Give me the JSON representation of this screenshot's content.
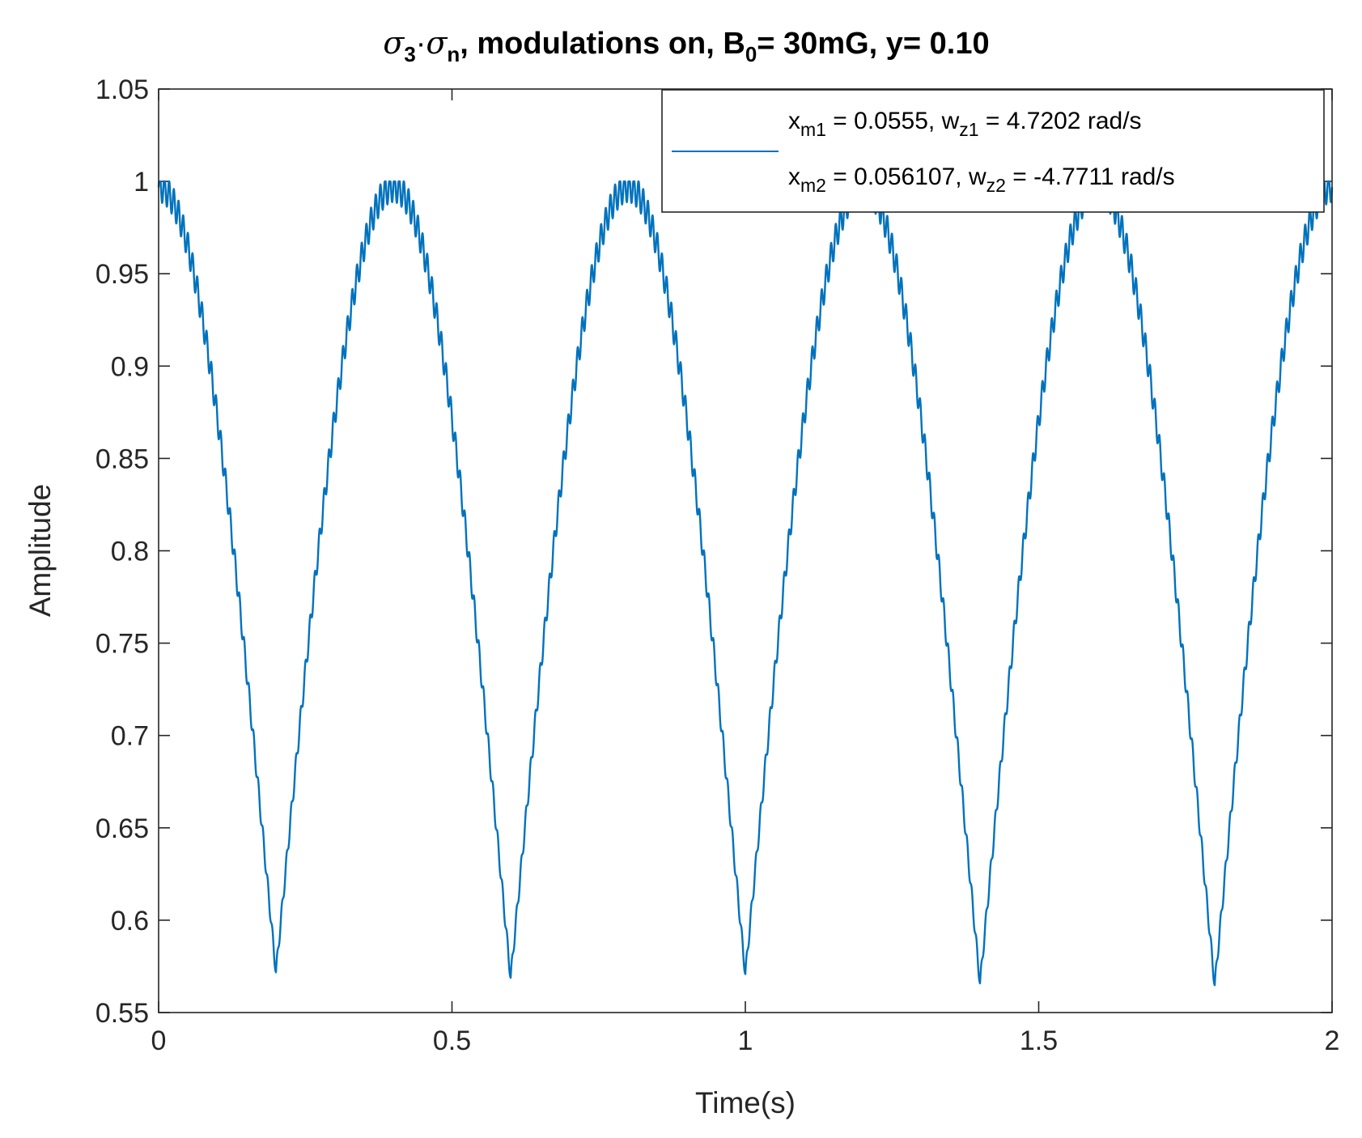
{
  "chart_data": {
    "type": "line",
    "title": {
      "sigma1": "σ",
      "sub1": "3",
      "dot": "·",
      "sigma2": "σ",
      "sub2": "n",
      "part_a": ", modulations on, B",
      "sub3": "0",
      "part_b": "= 30mG, y= 0.10"
    },
    "xlabel": "Time(s)",
    "ylabel": "Amplitude",
    "xlim": [
      0,
      2
    ],
    "ylim": [
      0.55,
      1.05
    ],
    "xticks": [
      0,
      0.5,
      1,
      1.5,
      2
    ],
    "xtick_labels": [
      "0",
      "0.5",
      "1",
      "1.5",
      "2"
    ],
    "yticks": [
      0.55,
      0.6,
      0.65,
      0.7,
      0.75,
      0.8,
      0.85,
      0.9,
      0.95,
      1.0,
      1.05
    ],
    "ytick_labels": [
      "0.55",
      "0.6",
      "0.65",
      "0.7",
      "0.75",
      "0.8",
      "0.85",
      "0.9",
      "0.95",
      "1",
      "1.05"
    ],
    "grid": false,
    "legend_position": "top-right",
    "legend": {
      "line1": {
        "a": "x",
        "a_sub": "m1",
        "b": " = 0.0555, w",
        "b_sub": "z1",
        "c": " = 4.7202 rad/s"
      },
      "line2": {
        "a": "x",
        "a_sub": "m2",
        "b": " = 0.056107, w",
        "b_sub": "z2",
        "c": " = -4.7711 rad/s"
      }
    },
    "series": [
      {
        "color": "#0072BD",
        "peaks_t": [
          0,
          0.4,
          0.8,
          1.2,
          1.6,
          2.0
        ],
        "troughs": [
          {
            "t": 0.2,
            "y": 0.575
          },
          {
            "t": 0.6,
            "y": 0.572
          },
          {
            "t": 1.0,
            "y": 0.574
          },
          {
            "t": 1.4,
            "y": 0.569
          },
          {
            "t": 1.8,
            "y": 0.568
          }
        ],
        "peak_value": 1.0,
        "envelope_period_s": 0.8,
        "ripple_amplitude": 0.008,
        "ripple_period_s": 0.008
      }
    ]
  }
}
